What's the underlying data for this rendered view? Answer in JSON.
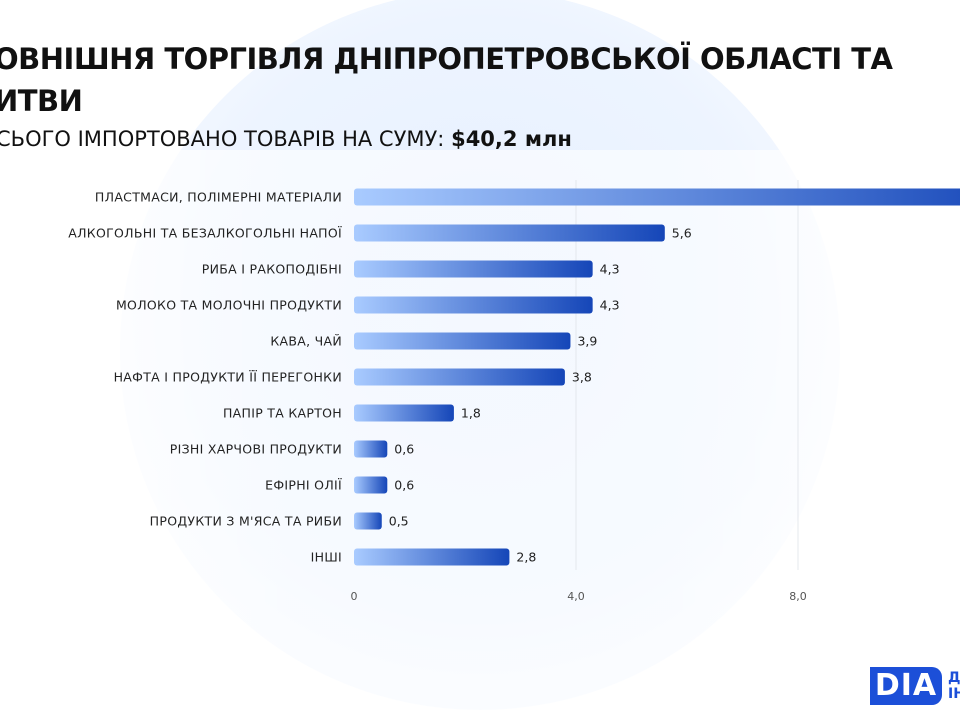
{
  "header": {
    "title_line1": "ОВНІШНЯ ТОРГІВЛЯ ДНІПРОПЕТРОВСЬКОЇ ОБЛАСТІ ТА",
    "title_line2": "ИТВИ",
    "subtitle_prefix": "СЬОГО ІМПОРТОВАНО ТОВАРІВ НА СУМУ:",
    "subtitle_value": "$40,2 млн"
  },
  "logo": {
    "text": "DIA",
    "side_line1": "Д",
    "side_line2": "ІН"
  },
  "colors": {
    "bar_start": "#a9cbff",
    "bar_end": "#1546b8",
    "grid": "#e4e8ee"
  },
  "chart_data": {
    "type": "bar",
    "orientation": "horizontal",
    "title": "СЬОГО ІМПОРТОВАНО ТОВАРІВ НА СУМУ: $40,2 млн",
    "categories": [
      "ПЛАСТМАСИ, ПОЛІМЕРНІ МАТЕРІАЛИ",
      "АЛКОГОЛЬНІ ТА БЕЗАЛКОГОЛЬНІ НАПОЇ",
      "РИБА І РАКОПОДІБНІ",
      "МОЛОКО ТА МОЛОЧНІ ПРОДУКТИ",
      "КАВА, ЧАЙ",
      "НАФТА І ПРОДУКТИ ЇЇ ПЕРЕГОНКИ",
      "ПАПІР ТА КАРТОН",
      "РІЗНІ ХАРЧОВІ ПРОДУКТИ",
      "ЕФІРНІ ОЛІЇ",
      "ПРОДУКТИ З М'ЯСА ТА РИБИ",
      "ІНШІ"
    ],
    "values": [
      12.0,
      5.6,
      4.3,
      4.3,
      3.9,
      3.8,
      1.8,
      0.6,
      0.6,
      0.5,
      2.8
    ],
    "value_labels": [
      "",
      "5,6",
      "4,3",
      "4,3",
      "3,9",
      "3,8",
      "1,8",
      "0,6",
      "0,6",
      "0,5",
      "2,8"
    ],
    "xticks": [
      0,
      4,
      8
    ],
    "xtick_labels": [
      "0",
      "4,0",
      "8,0"
    ],
    "xlim": [
      0,
      10.8
    ],
    "grid": true
  }
}
